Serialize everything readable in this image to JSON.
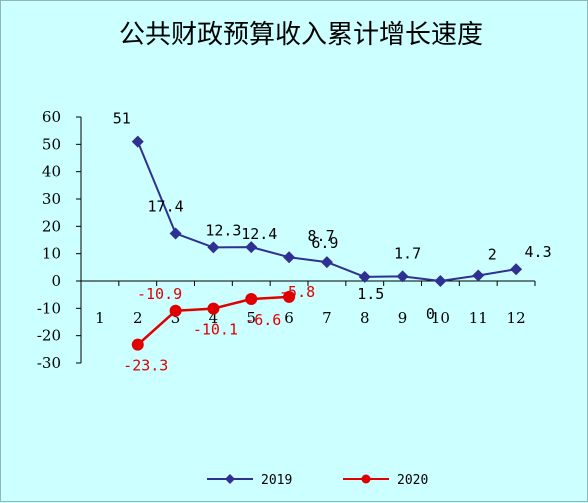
{
  "chart_data": {
    "type": "line",
    "title": "公共财政预算收入累计增长速度",
    "xlabel": "",
    "ylabel": "",
    "categories": [
      "1",
      "2",
      "3",
      "4",
      "5",
      "6",
      "7",
      "8",
      "9",
      "10",
      "11",
      "12"
    ],
    "ylim": [
      -30,
      60
    ],
    "yticks": [
      "60",
      "50",
      "40",
      "30",
      "20",
      "10",
      "0",
      "-10",
      "-20",
      "-30"
    ],
    "grid": false,
    "legend_position": "bottom",
    "series": [
      {
        "name": "2019",
        "color": "#2e3192",
        "marker": "diamond",
        "values": [
          null,
          51,
          17.4,
          12.3,
          12.4,
          8.7,
          6.9,
          1.5,
          1.7,
          0,
          2,
          4.3
        ],
        "labels": [
          null,
          "51",
          "17.4",
          "12.3",
          "12.4",
          "8.7",
          "6.9",
          "1.5",
          "1.7",
          "0",
          "2",
          "4.3"
        ]
      },
      {
        "name": "2020",
        "color": "#e00000",
        "marker": "circle",
        "values": [
          null,
          -23.3,
          -10.9,
          -10.1,
          -6.6,
          -5.8,
          null,
          null,
          null,
          null,
          null,
          null
        ],
        "labels": [
          null,
          "-23.3",
          "-10.9",
          "-10.1",
          "-6.6",
          "-5.8",
          null,
          null,
          null,
          null,
          null,
          null
        ]
      }
    ]
  }
}
